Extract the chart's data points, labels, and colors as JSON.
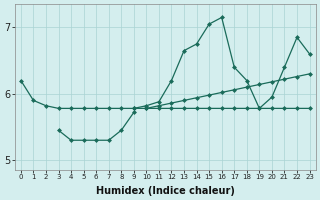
{
  "xlabel": "Humidex (Indice chaleur)",
  "x_values": [
    0,
    1,
    2,
    3,
    4,
    5,
    6,
    7,
    8,
    9,
    10,
    11,
    12,
    13,
    14,
    15,
    16,
    17,
    18,
    19,
    20,
    21,
    22,
    23
  ],
  "line_flat_y": [
    6.2,
    5.9,
    5.82,
    5.78,
    5.78,
    5.78,
    5.78,
    5.78,
    5.78,
    5.78,
    5.78,
    5.78,
    5.78,
    5.78,
    5.78,
    5.78,
    5.78,
    5.78,
    5.78,
    5.78,
    5.78,
    5.78,
    5.78,
    5.78
  ],
  "line_dip_y": [
    null,
    null,
    null,
    5.45,
    5.3,
    5.3,
    5.3,
    5.3,
    5.45,
    5.72,
    null,
    null,
    null,
    null,
    null,
    null,
    null,
    null,
    null,
    null,
    null,
    null,
    null,
    null
  ],
  "line_wave_y": [
    null,
    null,
    null,
    null,
    null,
    null,
    null,
    null,
    null,
    5.78,
    5.82,
    5.88,
    6.2,
    6.65,
    6.75,
    7.05,
    7.15,
    6.4,
    6.2,
    5.78,
    5.95,
    6.4,
    6.85,
    6.6
  ],
  "line_trend_y": [
    null,
    null,
    null,
    null,
    null,
    null,
    null,
    null,
    null,
    null,
    5.78,
    5.82,
    5.86,
    5.9,
    5.94,
    5.98,
    6.02,
    6.06,
    6.1,
    6.14,
    6.18,
    6.22,
    6.26,
    6.3
  ],
  "ylim": [
    4.85,
    7.35
  ],
  "xlim": [
    -0.5,
    23.5
  ],
  "yticks": [
    5,
    6,
    7
  ],
  "xticks": [
    0,
    1,
    2,
    3,
    4,
    5,
    6,
    7,
    8,
    9,
    10,
    11,
    12,
    13,
    14,
    15,
    16,
    17,
    18,
    19,
    20,
    21,
    22,
    23
  ],
  "line_color": "#1a6b5a",
  "bg_color": "#d4eeee",
  "grid_color": "#aad4d4",
  "markersize": 2.5
}
